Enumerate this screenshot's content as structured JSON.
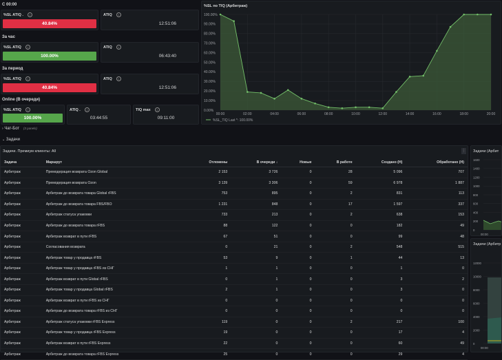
{
  "sections": {
    "since_midnight": "С 00:00",
    "last_hour": "За час",
    "period": "За период",
    "online": "Online (В очереди)"
  },
  "stats": {
    "r1": {
      "sl_label": "%SL ATIQ .",
      "sl_value": "40.84%",
      "atiq_label": "ATIQ",
      "atiq_value": "12:51:06"
    },
    "r2": {
      "sl_label": "%SL ATIQ",
      "sl_value": "100.00%",
      "atiq_label": "ATIQ",
      "atiq_value": "06:43:40"
    },
    "r3": {
      "sl_label": "%SL ATIQ",
      "sl_value": "40.84%",
      "atiq_label": "ATIQ",
      "atiq_value": "12:51:06"
    },
    "r4": {
      "sl_label": "%SL ATIQ",
      "sl_value": "100.00%",
      "atiq_label": "ATIQ .",
      "atiq_value": "03:44:55",
      "tiq_label": "TIQ max",
      "tiq_value": "09:11:00"
    }
  },
  "rows": {
    "chatbot": "Чат-Бот",
    "chatbot_count": "(3 panels)",
    "tasks": "Задачи"
  },
  "table_panel": {
    "title": "Задачи. Премиум клиенты: All",
    "columns": [
      "Задача",
      "Маршрут",
      "Отложены",
      "В очереди ↓",
      "Новые",
      "В работе",
      "Создано (Н)",
      "Обработано (Н)"
    ],
    "rows": [
      [
        "Арбитраж",
        "Премодерация возврата Ozon Global",
        "2 153",
        "3 726",
        "0",
        "28",
        "5 096",
        "707"
      ],
      [
        "Арбитраж",
        "Премодерация возврата Ozon",
        "3 139",
        "3 306",
        "0",
        "59",
        "6 978",
        "1 887"
      ],
      [
        "Арбитраж",
        "Арбитраж до возврата товара Global rFBS",
        "753",
        "895",
        "0",
        "2",
        "831",
        "113"
      ],
      [
        "Арбитраж",
        "Арбитраж до возврата товара FBS/FBO",
        "1 231",
        "848",
        "0",
        "17",
        "1 597",
        "337"
      ],
      [
        "Арбитраж",
        "Арбитраж статуса упаковки",
        "733",
        "213",
        "0",
        "2",
        "638",
        "153"
      ],
      [
        "Арбитраж",
        "Арбитраж до возврата товара rFBS",
        "88",
        "122",
        "0",
        "0",
        "182",
        "49"
      ],
      [
        "Арбитраж",
        "Арбитраж возврат в пути rFBS",
        "67",
        "51",
        "0",
        "0",
        "99",
        "48"
      ],
      [
        "Арбитраж",
        "Согласования возврата",
        "0",
        "21",
        "0",
        "2",
        "548",
        "515"
      ],
      [
        "Арбитраж",
        "Арбитраж товар у продавца rFBS",
        "53",
        "9",
        "0",
        "1",
        "44",
        "13"
      ],
      [
        "Арбитраж",
        "Арбитраж товар у продавца rFBS из СНГ",
        "1",
        "1",
        "0",
        "0",
        "1",
        "0"
      ],
      [
        "Арбитраж",
        "Арбитраж возврат в пути Global rFBS",
        "0",
        "1",
        "0",
        "0",
        "3",
        "2"
      ],
      [
        "Арбитраж",
        "Арбитраж товар у продавца Global rFBS",
        "2",
        "1",
        "0",
        "0",
        "3",
        "0"
      ],
      [
        "Арбитраж",
        "Арбитраж возврат в пути rFBS из СНГ",
        "0",
        "0",
        "0",
        "0",
        "0",
        "0"
      ],
      [
        "Арбитраж",
        "Арбитраж до возврата товара rFBS из СНГ",
        "0",
        "0",
        "0",
        "0",
        "0",
        "0"
      ],
      [
        "Арбитраж",
        "Арбитраж статуса упаковки rFBS Express",
        "119",
        "0",
        "0",
        "2",
        "217",
        "100"
      ],
      [
        "Арбитраж",
        "Арбитраж товар у продавца rFBS Express",
        "19",
        "0",
        "0",
        "0",
        "17",
        "4"
      ],
      [
        "Арбитраж",
        "Арбитраж возврат в пути rFBS Express",
        "22",
        "0",
        "0",
        "0",
        "60",
        "49"
      ],
      [
        "Арбитраж",
        "Арбитраж до возврата товара rFBS Express",
        "25",
        "0",
        "0",
        "0",
        "29",
        "4"
      ]
    ]
  },
  "right_panels": {
    "top_title": "Задачи (Арбит",
    "top_ticks": [
      "1600",
      "1400",
      "1200",
      "1000",
      "800",
      "600",
      "400",
      "200",
      "0"
    ],
    "top_x": "00:00",
    "bottom_title": "Задачи (Арбитр",
    "bottom_ticks": [
      "12000",
      "10000",
      "8000",
      "6000",
      "4000",
      "2000",
      "0"
    ],
    "bottom_x": "00:00"
  },
  "colors": {
    "red": "#e02f44",
    "green": "#56a64b",
    "line": "#73bf69"
  },
  "chart_data": {
    "type": "area",
    "title": "%SL по TIQ (Арбитраж)",
    "x": [
      "00:00",
      "01:00",
      "02:00",
      "03:00",
      "04:00",
      "05:00",
      "06:00",
      "07:00",
      "08:00",
      "09:00",
      "10:00",
      "11:00",
      "12:00",
      "13:00",
      "14:00",
      "15:00",
      "16:00",
      "17:00",
      "18:00",
      "19:00",
      "20:00"
    ],
    "series": [
      {
        "name": "%SL_TIQ",
        "values": [
          100,
          93,
          19,
          18,
          12,
          21,
          12,
          7,
          3,
          2,
          3,
          3,
          2,
          19,
          35,
          36,
          62,
          87,
          100,
          100,
          100
        ]
      }
    ],
    "legend_text": "%SL_TIQ  Last *: 100.00%",
    "legend_position": "bottom-left",
    "ylim": [
      0,
      100
    ],
    "yticks": [
      "0.00%",
      "10.00%",
      "20.00%",
      "30.00%",
      "40.00%",
      "50.00%",
      "60.00%",
      "70.00%",
      "80.00%",
      "90.00%",
      "100.00%"
    ],
    "xticks": [
      "00:00",
      "02:00",
      "04:00",
      "06:00",
      "08:00",
      "10:00",
      "12:00",
      "14:00",
      "16:00",
      "18:00",
      "20:00"
    ],
    "grid": true
  }
}
